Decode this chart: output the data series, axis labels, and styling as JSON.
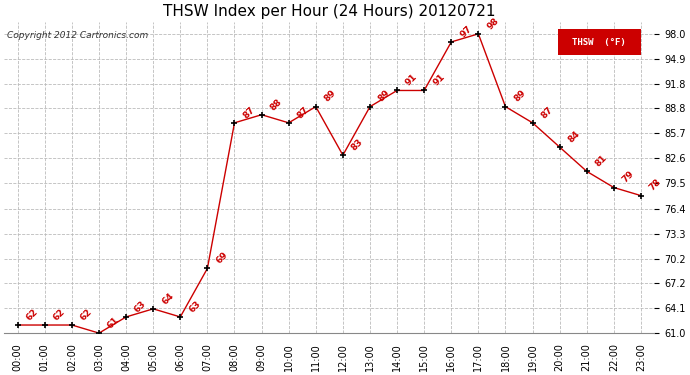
{
  "title": "THSW Index per Hour (24 Hours) 20120721",
  "copyright": "Copyright 2012 Cartronics.com",
  "legend_label": "THSW  (°F)",
  "hours": [
    "00:00",
    "01:00",
    "02:00",
    "03:00",
    "04:00",
    "05:00",
    "06:00",
    "07:00",
    "08:00",
    "09:00",
    "10:00",
    "11:00",
    "12:00",
    "13:00",
    "14:00",
    "15:00",
    "16:00",
    "17:00",
    "18:00",
    "19:00",
    "20:00",
    "21:00",
    "22:00",
    "23:00"
  ],
  "values": [
    62,
    62,
    62,
    61,
    63,
    64,
    63,
    69,
    87,
    88,
    87,
    89,
    83,
    89,
    91,
    91,
    97,
    98,
    89,
    87,
    84,
    81,
    79,
    78
  ],
  "yticks": [
    61.0,
    64.1,
    67.2,
    70.2,
    73.3,
    76.4,
    79.5,
    82.6,
    85.7,
    88.8,
    91.8,
    94.9,
    98.0
  ],
  "ylim_min": 61.0,
  "ylim_max": 99.5,
  "line_color": "#cc0000",
  "marker_color": "#000000",
  "bg_color": "#ffffff",
  "grid_color": "#bbbbbb",
  "title_fontsize": 11,
  "tick_fontsize": 7,
  "annot_fontsize": 6.5,
  "copyright_fontsize": 6.5
}
